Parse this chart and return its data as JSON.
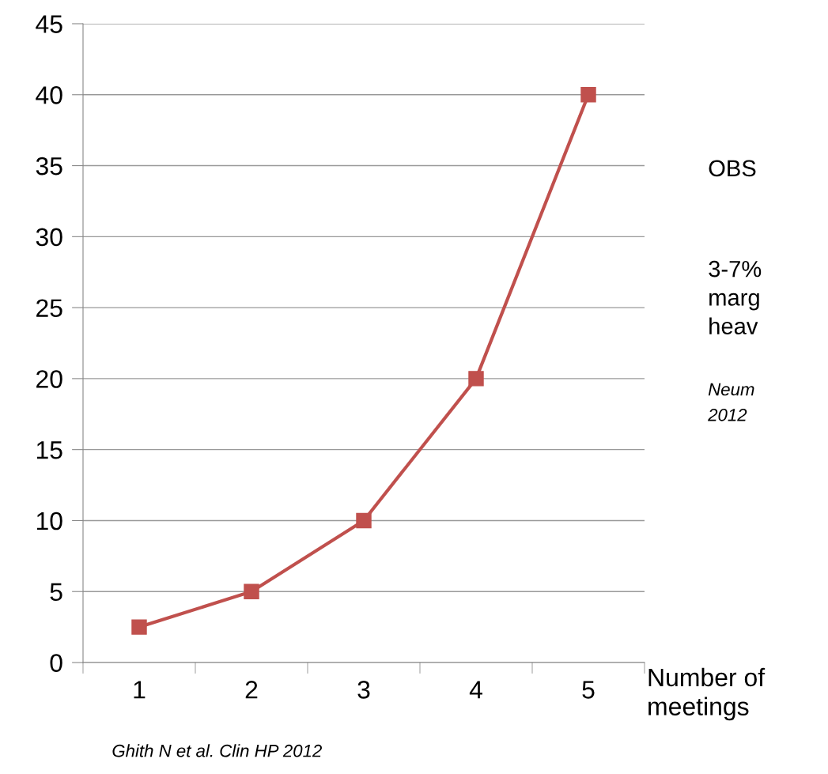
{
  "chart_data": {
    "type": "line",
    "categories": [
      "1",
      "2",
      "3",
      "4",
      "5"
    ],
    "series": [
      {
        "color": "#c0504d",
        "values": [
          2.5,
          5,
          10,
          20,
          40
        ]
      }
    ],
    "ylim": [
      0,
      45
    ],
    "yticks": [
      0,
      5,
      10,
      15,
      20,
      25,
      30,
      35,
      40,
      45
    ],
    "grid": "y",
    "marker": "square",
    "line_style": "solid",
    "legend": false,
    "xlabel": "Number of meetings",
    "annotations": [
      "OBS",
      "3-7%",
      "marg",
      "heav",
      "Neum",
      "2012",
      "Ghith N et al. Clin HP 2012"
    ]
  }
}
